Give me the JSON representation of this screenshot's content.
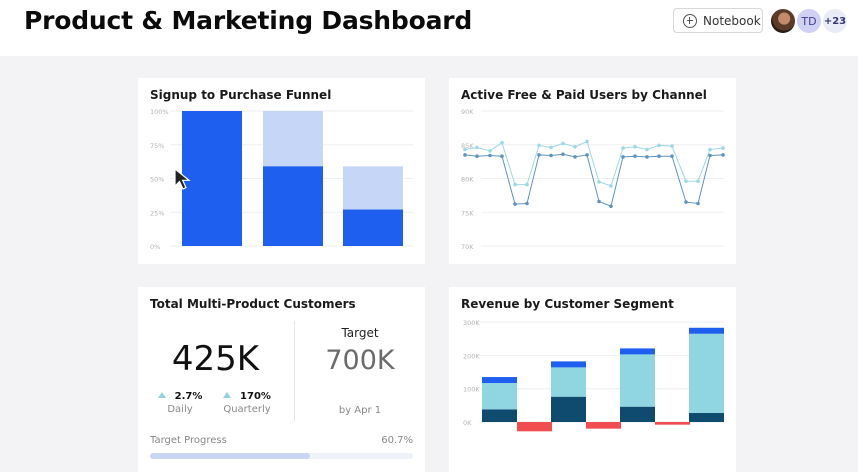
{
  "header": {
    "title": "Product & Marketing Dashboard",
    "notebook_label": "Notebook",
    "avatar_initials": "TD",
    "avatar_more": "+23"
  },
  "cards": {
    "funnel": {
      "title": "Signup to Purchase Funnel"
    },
    "users": {
      "title": "Active Free & Paid Users by Channel"
    },
    "multi": {
      "title": "Total Multi-Product Customers",
      "value": "425K",
      "daily_value": "2.7%",
      "daily_label": "Daily",
      "quarterly_value": "170%",
      "quarterly_label": "Quarterly",
      "target_label": "Target",
      "target_value": "700K",
      "target_date": "by Apr 1",
      "progress_label": "Target Progress",
      "progress_pct": "60.7%",
      "progress_fraction": 0.607
    },
    "revenue": {
      "title": "Revenue by Customer Segment"
    }
  },
  "colors": {
    "primary_blue": "#1f5fef",
    "light_blue": "#c5d6f7",
    "cyan": "#8fd6e1",
    "navy": "#0e4b6f",
    "red": "#ef4d4f",
    "line_light": "#9dd8e5",
    "line_dark": "#5e94bc"
  },
  "chart_data": [
    {
      "type": "bar",
      "name_ref": "funnel",
      "yticks": [
        "100%",
        "75%",
        "50%",
        "25%",
        "0%"
      ],
      "ylim": [
        0,
        100
      ],
      "categories": [
        "",
        "",
        ""
      ],
      "series": [
        {
          "name": "",
          "values": [
            100,
            59,
            27
          ]
        },
        {
          "name": "",
          "values": [
            100,
            100,
            59
          ]
        }
      ]
    },
    {
      "type": "line",
      "name_ref": "users",
      "yticks": [
        "90K",
        "85K",
        "80K",
        "75K",
        "70K"
      ],
      "ylim": [
        70,
        90
      ],
      "series": [
        {
          "name": "",
          "color": "line_light",
          "values": [
            84.3,
            84.6,
            84.1,
            85.3,
            79.1,
            79.1,
            84.9,
            84.6,
            85.2,
            84.7,
            85.5,
            79.5,
            78.9,
            84.5,
            84.7,
            84.3,
            84.9,
            84.8,
            79.6,
            79.6,
            84.3,
            84.5
          ]
        },
        {
          "name": "",
          "color": "line_dark",
          "values": [
            83.5,
            83.3,
            83.4,
            83.3,
            76.2,
            76.3,
            83.5,
            83.4,
            83.6,
            83.2,
            83.5,
            76.6,
            75.9,
            83.2,
            83.3,
            83.2,
            83.3,
            83.3,
            76.5,
            76.3,
            83.4,
            83.5
          ]
        }
      ]
    },
    {
      "type": "bar",
      "name_ref": "revenue",
      "stacked": true,
      "yticks": [
        "300K",
        "200K",
        "100K",
        "0K"
      ],
      "ylim": [
        -30,
        300
      ],
      "categories": [
        "",
        "",
        "",
        ""
      ],
      "series": [
        {
          "name": "",
          "color": "navy",
          "values": [
            38,
            76,
            46,
            27
          ]
        },
        {
          "name": "",
          "color": "cyan",
          "values": [
            79,
            88,
            157,
            238
          ]
        },
        {
          "name": "",
          "color": "primary_blue",
          "values": [
            18,
            18,
            18,
            18
          ]
        },
        {
          "name": "",
          "color": "red",
          "values": [
            -28,
            -20,
            -8,
            0
          ]
        }
      ]
    }
  ]
}
